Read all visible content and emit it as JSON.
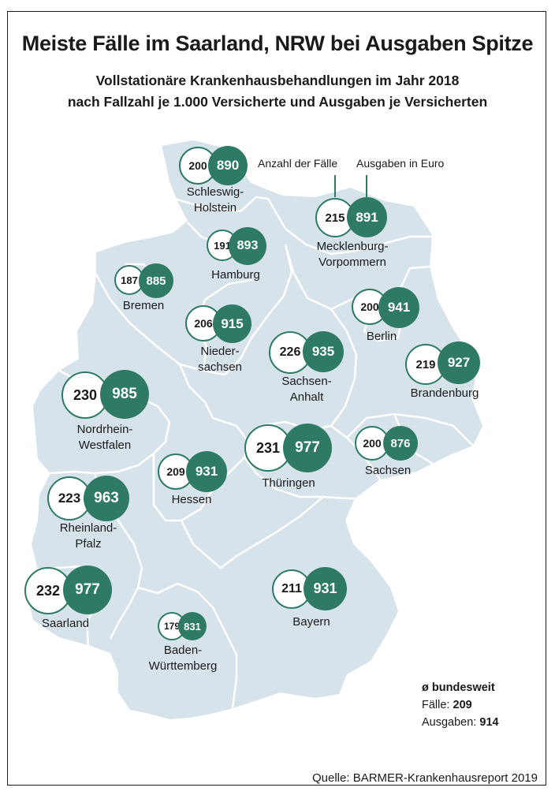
{
  "title": "Meiste Fälle im Saarland, NRW bei Ausgaben Spitze",
  "subtitle_line1": "Vollstationäre Krankenhausbehandlungen im Jahr 2018",
  "subtitle_line2": "nach Fallzahl je 1.000 Versicherte und Ausgaben je Versicherten",
  "legend": {
    "cases_label": "Anzahl der Fälle",
    "spend_label": "Ausgaben in Euro"
  },
  "colors": {
    "accent": "#2e7a64",
    "map_fill": "#d6e3ea",
    "border": "#ffffff"
  },
  "states": [
    {
      "name_line1": "Schleswig-",
      "name_line2": "Holstein",
      "cases": "200",
      "spend": "890"
    },
    {
      "name_line1": "Mecklenburg-",
      "name_line2": "Vorpommern",
      "cases": "215",
      "spend": "891"
    },
    {
      "name_line1": "Hamburg",
      "name_line2": "",
      "cases": "191",
      "spend": "893"
    },
    {
      "name_line1": "Bremen",
      "name_line2": "",
      "cases": "187",
      "spend": "885"
    },
    {
      "name_line1": "Nieder-",
      "name_line2": "sachsen",
      "cases": "206",
      "spend": "915"
    },
    {
      "name_line1": "Berlin",
      "name_line2": "",
      "cases": "200",
      "spend": "941"
    },
    {
      "name_line1": "Sachsen-",
      "name_line2": "Anhalt",
      "cases": "226",
      "spend": "935"
    },
    {
      "name_line1": "Brandenburg",
      "name_line2": "",
      "cases": "219",
      "spend": "927"
    },
    {
      "name_line1": "Nordrhein-",
      "name_line2": "Westfalen",
      "cases": "230",
      "spend": "985"
    },
    {
      "name_line1": "Thüringen",
      "name_line2": "",
      "cases": "231",
      "spend": "977"
    },
    {
      "name_line1": "Sachsen",
      "name_line2": "",
      "cases": "200",
      "spend": "876"
    },
    {
      "name_line1": "Hessen",
      "name_line2": "",
      "cases": "209",
      "spend": "931"
    },
    {
      "name_line1": "Rheinland-",
      "name_line2": "Pfalz",
      "cases": "223",
      "spend": "963"
    },
    {
      "name_line1": "Saarland",
      "name_line2": "",
      "cases": "232",
      "spend": "977"
    },
    {
      "name_line1": "Bayern",
      "name_line2": "",
      "cases": "211",
      "spend": "931"
    },
    {
      "name_line1": "Baden-",
      "name_line2": "Württemberg",
      "cases": "179",
      "spend": "831"
    }
  ],
  "national": {
    "heading": "ø bundesweit",
    "cases_label": "Fälle:",
    "cases_value": "209",
    "spend_label": "Ausgaben:",
    "spend_value": "914"
  },
  "source": "Quelle: BARMER-Krankenhausreport 2019"
}
